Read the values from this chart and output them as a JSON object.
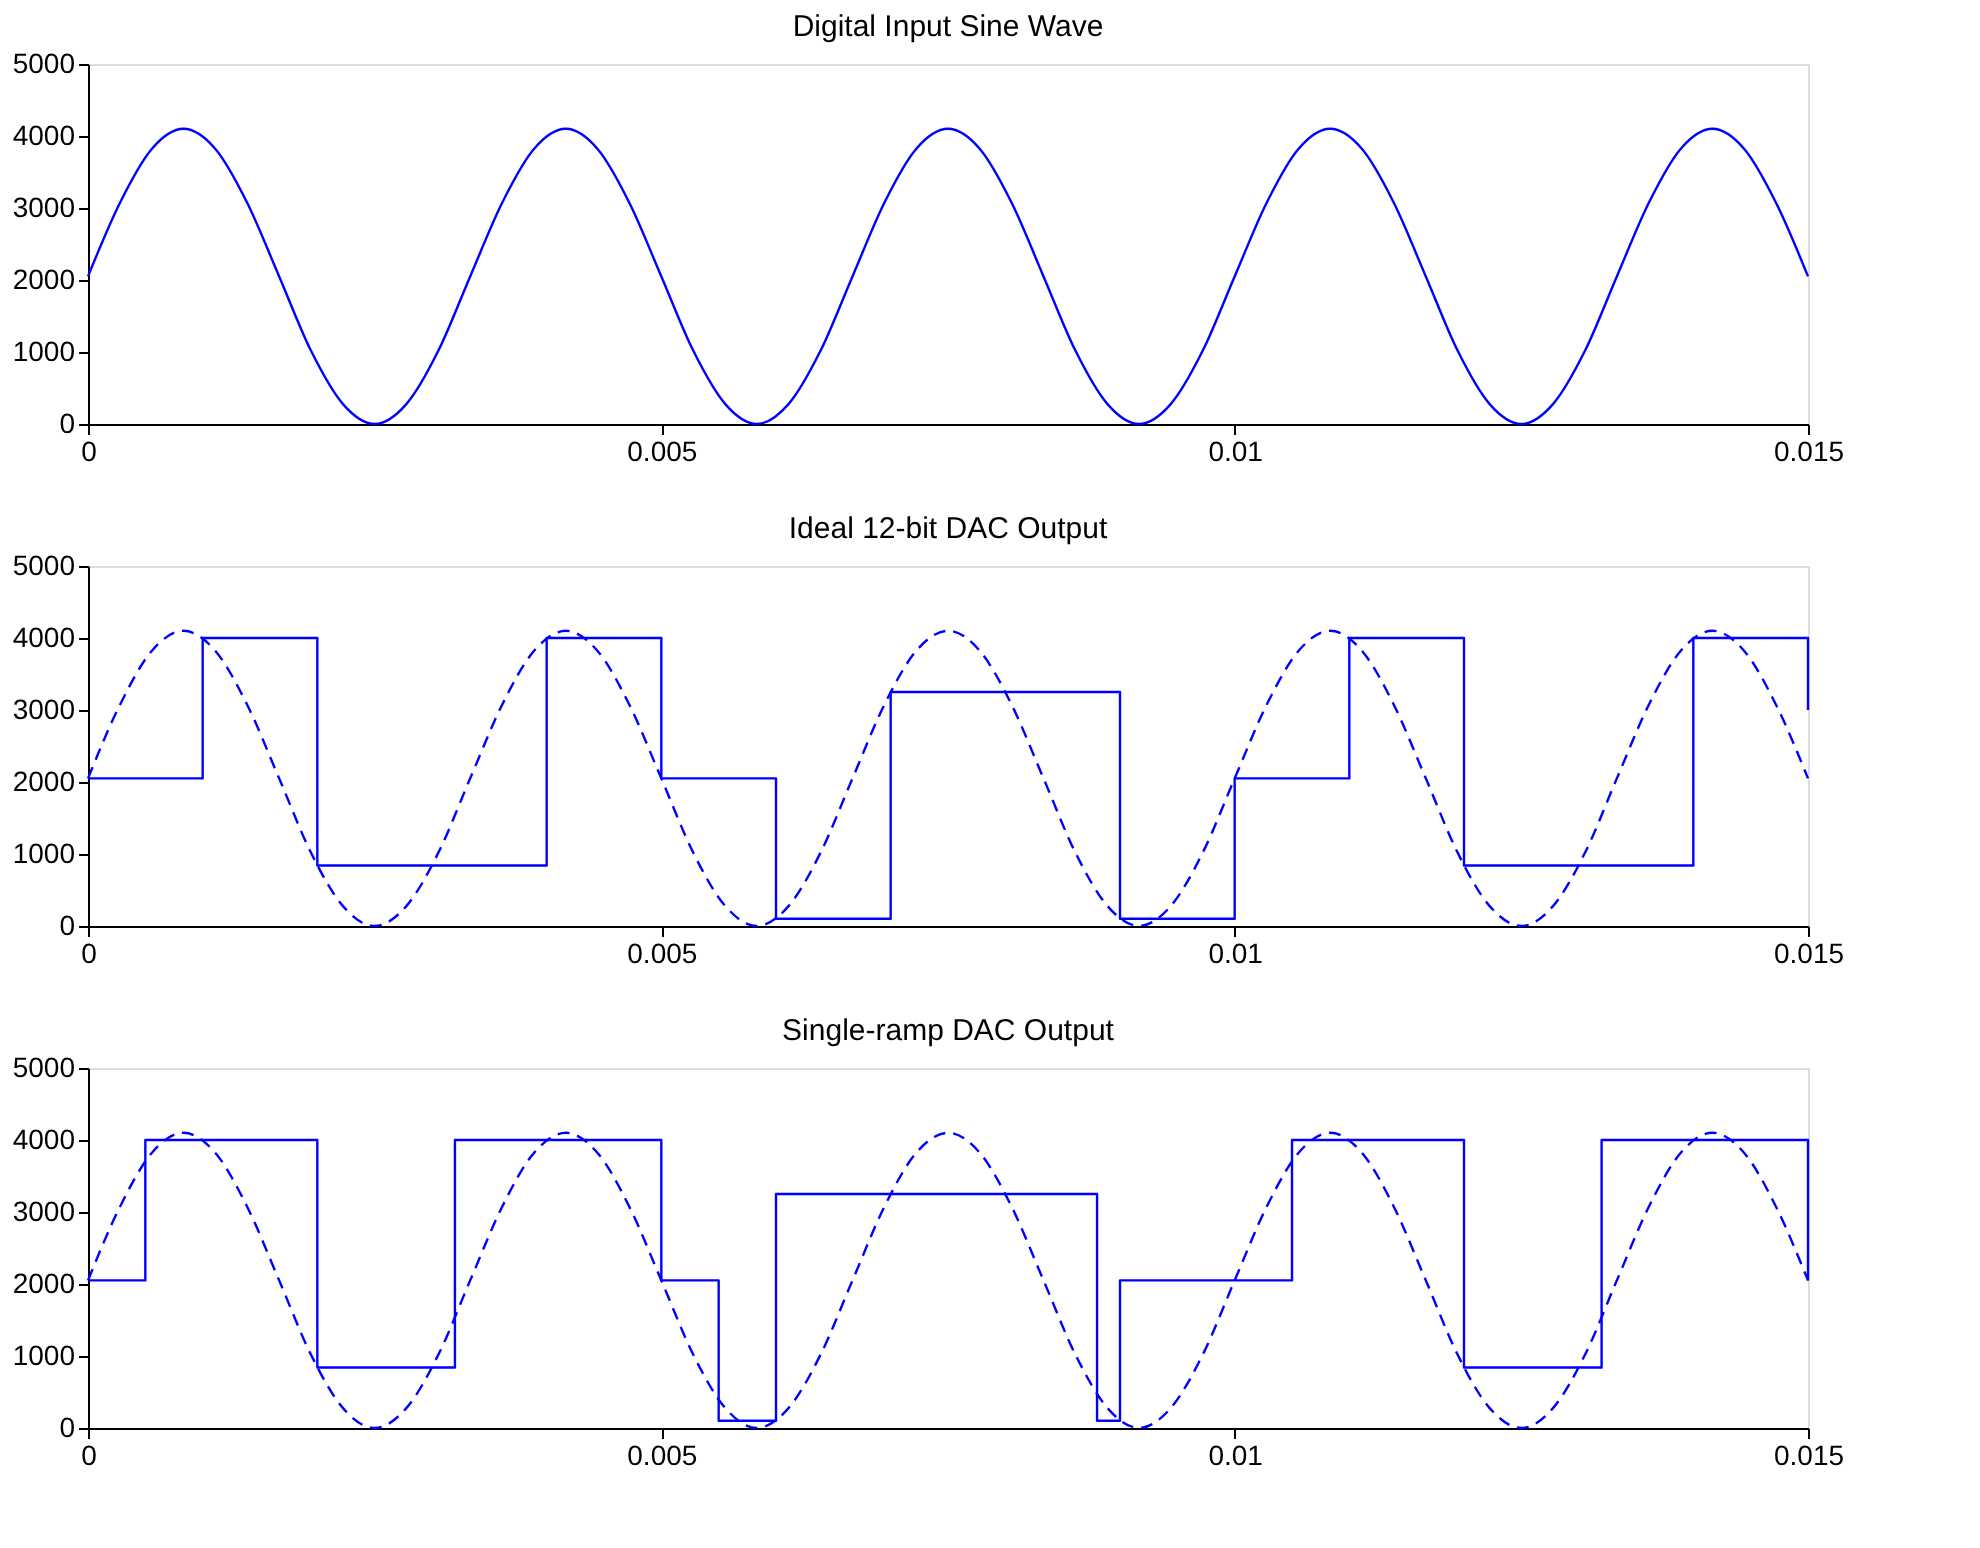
{
  "chart_data": [
    {
      "type": "line",
      "title": "Digital Input Sine Wave",
      "xlim": [
        0,
        0.015
      ],
      "xticks": [
        0,
        0.005,
        0.01,
        0.015
      ],
      "ylim": [
        0,
        5000
      ],
      "yticks": [
        0,
        1000,
        2000,
        3000,
        4000,
        5000
      ],
      "grid": false,
      "series": [
        {
          "type": "line",
          "color": "#0000ff",
          "line_style": "solid",
          "x": [
            0,
            0.000278,
            0.000556,
            0.000833,
            0.001111,
            0.001389,
            0.001667,
            0.001944,
            0.002222,
            0.0025,
            0.002778,
            0.003056,
            0.003333,
            0.003611,
            0.003889,
            0.004167,
            0.004444,
            0.004722,
            0.005,
            0.005278,
            0.005556,
            0.005833,
            0.006111,
            0.006389,
            0.006667,
            0.006944,
            0.007222,
            0.0075,
            0.007778,
            0.008056,
            0.008333,
            0.008611,
            0.008889,
            0.009167,
            0.009444,
            0.009722,
            0.01,
            0.010278,
            0.010556,
            0.010833,
            0.011111,
            0.011389,
            0.011667,
            0.011944,
            0.012222,
            0.0125,
            0.012778,
            0.013056,
            0.013333,
            0.013611,
            0.013889,
            0.014167,
            0.014444,
            0.014722,
            0.015
          ],
          "values": [
            2050,
            3070,
            3820,
            4100,
            3820,
            3070,
            2050,
            1020,
            280,
            0,
            280,
            1020,
            2050,
            3070,
            3820,
            4100,
            3820,
            3070,
            2050,
            1020,
            280,
            0,
            280,
            1020,
            2050,
            3070,
            3820,
            4100,
            3820,
            3070,
            2050,
            1020,
            280,
            0,
            280,
            1020,
            2050,
            3070,
            3820,
            4100,
            3820,
            3070,
            2050,
            1020,
            280,
            0,
            280,
            1020,
            2050,
            3070,
            3820,
            4100,
            3820,
            3070,
            2050
          ]
        }
      ]
    },
    {
      "type": "line",
      "title": "Ideal 12-bit DAC Output",
      "xlim": [
        0,
        0.015
      ],
      "xticks": [
        0,
        0.005,
        0.01,
        0.015
      ],
      "ylim": [
        0,
        5000
      ],
      "yticks": [
        0,
        1000,
        2000,
        3000,
        4000,
        5000
      ],
      "grid": false,
      "series": [
        {
          "type": "line",
          "color": "#0000ff",
          "line_style": "dashed",
          "x": [
            0,
            0.000278,
            0.000556,
            0.000833,
            0.001111,
            0.001389,
            0.001667,
            0.001944,
            0.002222,
            0.0025,
            0.002778,
            0.003056,
            0.003333,
            0.003611,
            0.003889,
            0.004167,
            0.004444,
            0.004722,
            0.005,
            0.005278,
            0.005556,
            0.005833,
            0.006111,
            0.006389,
            0.006667,
            0.006944,
            0.007222,
            0.0075,
            0.007778,
            0.008056,
            0.008333,
            0.008611,
            0.008889,
            0.009167,
            0.009444,
            0.009722,
            0.01,
            0.010278,
            0.010556,
            0.010833,
            0.011111,
            0.011389,
            0.011667,
            0.011944,
            0.012222,
            0.0125,
            0.012778,
            0.013056,
            0.013333,
            0.013611,
            0.013889,
            0.014167,
            0.014444,
            0.014722,
            0.015
          ],
          "values": [
            2050,
            3070,
            3820,
            4100,
            3820,
            3070,
            2050,
            1020,
            280,
            0,
            280,
            1020,
            2050,
            3070,
            3820,
            4100,
            3820,
            3070,
            2050,
            1020,
            280,
            0,
            280,
            1020,
            2050,
            3070,
            3820,
            4100,
            3820,
            3070,
            2050,
            1020,
            280,
            0,
            280,
            1020,
            2050,
            3070,
            3820,
            4100,
            3820,
            3070,
            2050,
            1020,
            280,
            0,
            280,
            1020,
            2050,
            3070,
            3820,
            4100,
            3820,
            3070,
            2050
          ]
        },
        {
          "type": "step",
          "color": "#0000ff",
          "line_style": "solid",
          "x": [
            0,
            0.001,
            0.002,
            0.004,
            0.005,
            0.006,
            0.007,
            0.009,
            0.01,
            0.011,
            0.012,
            0.014,
            0.015
          ],
          "values": [
            2050,
            4000,
            840,
            4000,
            2050,
            100,
            3250,
            100,
            2050,
            4000,
            840,
            4000,
            3000
          ]
        }
      ]
    },
    {
      "type": "line",
      "title": "Single-ramp DAC Output",
      "xlim": [
        0,
        0.015
      ],
      "xticks": [
        0,
        0.005,
        0.01,
        0.015
      ],
      "ylim": [
        0,
        5000
      ],
      "yticks": [
        0,
        1000,
        2000,
        3000,
        4000,
        5000
      ],
      "grid": false,
      "series": [
        {
          "type": "line",
          "color": "#0000ff",
          "line_style": "dashed",
          "x": [
            0,
            0.000278,
            0.000556,
            0.000833,
            0.001111,
            0.001389,
            0.001667,
            0.001944,
            0.002222,
            0.0025,
            0.002778,
            0.003056,
            0.003333,
            0.003611,
            0.003889,
            0.004167,
            0.004444,
            0.004722,
            0.005,
            0.005278,
            0.005556,
            0.005833,
            0.006111,
            0.006389,
            0.006667,
            0.006944,
            0.007222,
            0.0075,
            0.007778,
            0.008056,
            0.008333,
            0.008611,
            0.008889,
            0.009167,
            0.009444,
            0.009722,
            0.01,
            0.010278,
            0.010556,
            0.010833,
            0.011111,
            0.011389,
            0.011667,
            0.011944,
            0.012222,
            0.0125,
            0.012778,
            0.013056,
            0.013333,
            0.013611,
            0.013889,
            0.014167,
            0.014444,
            0.014722,
            0.015
          ],
          "values": [
            2050,
            3070,
            3820,
            4100,
            3820,
            3070,
            2050,
            1020,
            280,
            0,
            280,
            1020,
            2050,
            3070,
            3820,
            4100,
            3820,
            3070,
            2050,
            1020,
            280,
            0,
            280,
            1020,
            2050,
            3070,
            3820,
            4100,
            3820,
            3070,
            2050,
            1020,
            280,
            0,
            280,
            1020,
            2050,
            3070,
            3820,
            4100,
            3820,
            3070,
            2050,
            1020,
            280,
            0,
            280,
            1020,
            2050,
            3070,
            3820,
            4100,
            3820,
            3070,
            2050
          ]
        },
        {
          "type": "step",
          "color": "#0000ff",
          "line_style": "solid",
          "x": [
            0,
            0.0005,
            0.002,
            0.0032,
            0.005,
            0.0055,
            0.006,
            0.0088,
            0.009,
            0.0105,
            0.012,
            0.0132,
            0.015
          ],
          "values": [
            2050,
            4000,
            840,
            4000,
            2050,
            100,
            3250,
            100,
            2050,
            4000,
            840,
            4000,
            2050
          ]
        }
      ]
    }
  ]
}
